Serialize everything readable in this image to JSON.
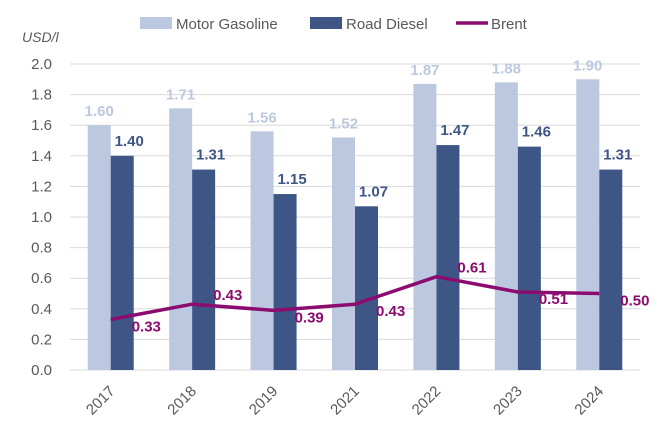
{
  "chart_data": {
    "type": "bar",
    "title": "",
    "ylabel": "USD/l",
    "xlabel": "",
    "categories": [
      "2017",
      "2018",
      "2019",
      "2021",
      "2022",
      "2023",
      "2024"
    ],
    "ylim": [
      0,
      2.0
    ],
    "yticks": [
      "0.0",
      "0.2",
      "0.4",
      "0.6",
      "0.8",
      "1.0",
      "1.2",
      "1.4",
      "1.6",
      "1.8",
      "2.0"
    ],
    "grid": true,
    "legend_position": "top",
    "series": [
      {
        "name": "Motor Gasoline",
        "kind": "bar",
        "color": "#bcc8e0",
        "label_color": "#bcc8e0",
        "values": [
          1.6,
          1.71,
          1.56,
          1.52,
          1.87,
          1.88,
          1.9
        ],
        "labels": [
          "1.60",
          "1.71",
          "1.56",
          "1.52",
          "1.87",
          "1.88",
          "1.90"
        ]
      },
      {
        "name": "Road Diesel",
        "kind": "bar",
        "color": "#3e5686",
        "label_color": "#3e5686",
        "values": [
          1.4,
          1.31,
          1.15,
          1.07,
          1.47,
          1.46,
          1.31
        ],
        "labels": [
          "1.40",
          "1.31",
          "1.15",
          "1.07",
          "1.47",
          "1.46",
          "1.31"
        ]
      },
      {
        "name": "Brent",
        "kind": "line",
        "color": "#8c0b6e",
        "label_color": "#8c0b6e",
        "values": [
          0.33,
          0.43,
          0.39,
          0.43,
          0.61,
          0.51,
          0.5
        ],
        "labels": [
          "0.33",
          "0.43",
          "0.39",
          "0.43",
          "0.61",
          "0.51",
          "0.50"
        ]
      }
    ]
  }
}
